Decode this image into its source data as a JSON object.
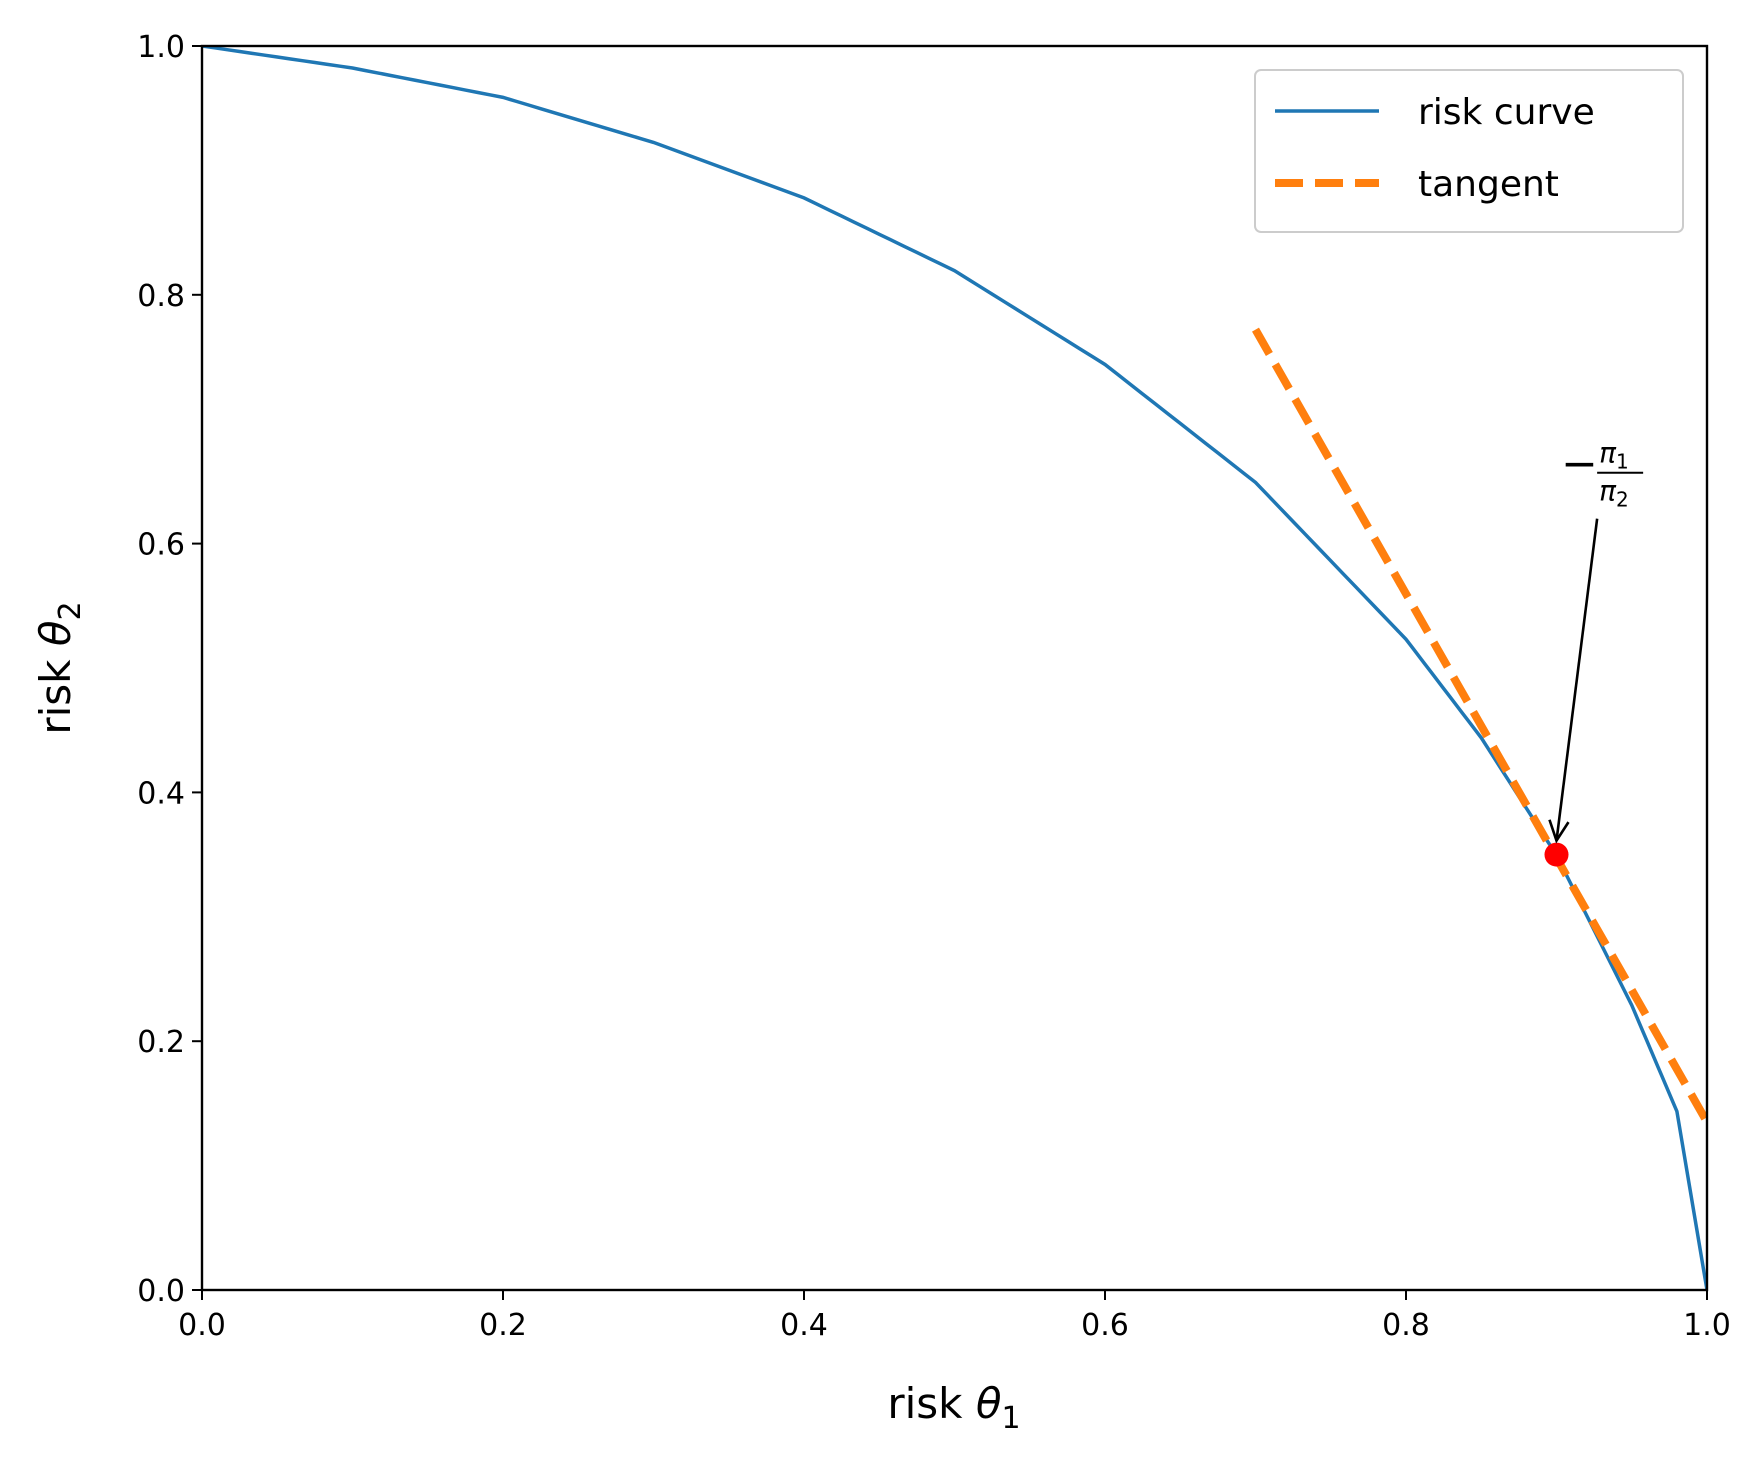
{
  "chart_data": {
    "type": "line",
    "title": "",
    "xlabel": {
      "prefix": "risk ",
      "symbol": "θ",
      "subscript": "1"
    },
    "ylabel": {
      "prefix": "risk ",
      "symbol": "θ",
      "subscript": "2"
    },
    "xlim": [
      0.0,
      1.0
    ],
    "ylim": [
      0.0,
      1.0
    ],
    "xticks": [
      "0.0",
      "0.2",
      "0.4",
      "0.6",
      "0.8",
      "1.0"
    ],
    "yticks": [
      "0.0",
      "0.2",
      "0.4",
      "0.6",
      "0.8",
      "1.0"
    ],
    "grid": false,
    "legend_position": "top-right",
    "series": [
      {
        "name": "risk curve",
        "style": "solid",
        "color": "#1f77b4",
        "x": [
          0.0,
          0.1,
          0.2,
          0.3,
          0.4,
          0.5,
          0.6,
          0.7,
          0.8,
          0.85,
          0.9,
          0.95,
          0.98,
          1.0
        ],
        "y": [
          1.0,
          0.9823,
          0.9587,
          0.9225,
          0.8779,
          0.8194,
          0.744,
          0.6492,
          0.5231,
          0.4439,
          0.3495,
          0.2289,
          0.1436,
          0.0
        ]
      },
      {
        "name": "tangent",
        "style": "dashed",
        "color": "#ff7f0e",
        "x": [
          0.7,
          1.0
        ],
        "y": [
          0.772,
          0.135
        ]
      }
    ],
    "points": [
      {
        "x": 0.9,
        "y": 0.35,
        "color": "#ff0000"
      }
    ],
    "annotation": {
      "sign": "−",
      "numerator": {
        "symbol": "π",
        "subscript": "1"
      },
      "denominator": {
        "symbol": "π",
        "subscript": "2"
      },
      "points_to": {
        "x": 0.9,
        "y": 0.35
      },
      "text_at": {
        "x": 0.927,
        "y": 0.62
      }
    }
  }
}
